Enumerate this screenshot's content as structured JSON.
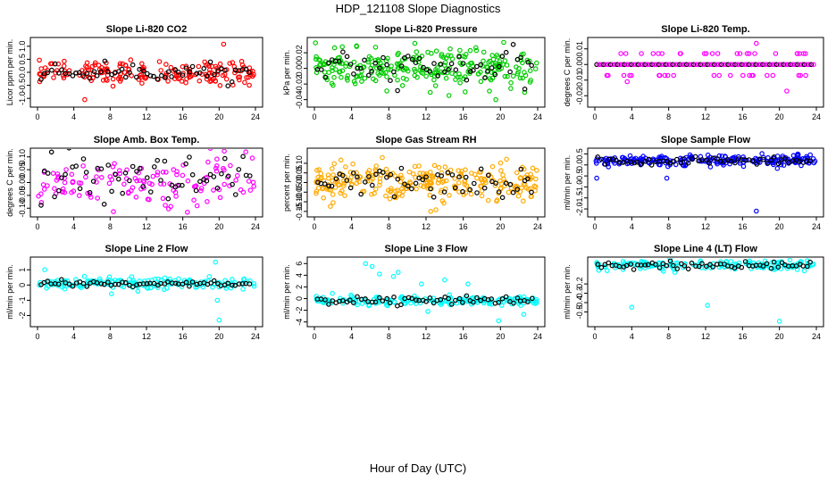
{
  "figure": {
    "title": "HDP_121108  Slope Diagnostics",
    "xlabel": "Hour of Day (UTC)"
  },
  "chart_data": [
    {
      "type": "scatter",
      "title": "Slope Li-820 CO2",
      "ylabel": "Licor ppm per min.",
      "color": "#ff0000",
      "xlim": [
        0,
        24
      ],
      "xticks": [
        0,
        4,
        8,
        12,
        16,
        20,
        24
      ],
      "ylim": [
        -1.2,
        1.2
      ],
      "yticks": [
        -1.0,
        -0.5,
        0.0,
        0.5,
        1.0
      ],
      "ytick_labels": [
        "-1.0",
        "-0.5",
        "0.0",
        "0.5",
        "1.0"
      ],
      "center": 0.0,
      "spread": 0.22,
      "density": 180,
      "black_spread": 0.15,
      "outliers": [
        [
          20.5,
          1.08
        ],
        [
          5.2,
          -1.05
        ]
      ]
    },
    {
      "type": "scatter",
      "title": "Slope Li-820 Pressure",
      "ylabel": "kPa per min.",
      "color": "#00cc00",
      "xlim": [
        0,
        24
      ],
      "xticks": [
        0,
        4,
        8,
        12,
        16,
        20,
        24
      ],
      "ylim": [
        -0.045,
        0.035
      ],
      "yticks": [
        -0.04,
        -0.02,
        0.0,
        0.02
      ],
      "ytick_labels": [
        "-0.04",
        "-0.02",
        "0.00",
        "0.02"
      ],
      "center": 0.0,
      "spread": 0.012,
      "density": 260,
      "black_spread": 0.01,
      "outliers": [
        [
          10.8,
          0.032
        ],
        [
          16.2,
          -0.03
        ],
        [
          19.5,
          -0.04
        ]
      ]
    },
    {
      "type": "scatter",
      "title": "Slope Li-820 Temp.",
      "ylabel": "degrees C per min.",
      "color": "#ff00ff",
      "xlim": [
        0,
        24
      ],
      "xticks": [
        0,
        4,
        8,
        12,
        16,
        20,
        24
      ],
      "ylim": [
        -0.025,
        0.015
      ],
      "yticks": [
        -0.02,
        -0.01,
        0.0,
        0.01
      ],
      "ytick_labels": [
        "-0.02",
        "-0.01",
        "0.00",
        "0.01"
      ],
      "center": 0.0,
      "spread": 0.0,
      "density": 0,
      "black_spread": 0.0,
      "level_rows": [
        0.0,
        0.007,
        -0.007
      ],
      "outliers": [
        [
          17.5,
          0.0135
        ],
        [
          20.8,
          -0.017
        ],
        [
          3.5,
          -0.011
        ],
        [
          16.5,
          0.007
        ]
      ]
    },
    {
      "type": "scatter",
      "title": "Slope Amb. Box Temp.",
      "ylabel": "degrees C per min.",
      "color": "#ff00ff",
      "xlim": [
        0,
        24
      ],
      "xticks": [
        0,
        4,
        8,
        12,
        16,
        20,
        24
      ],
      "ylim": [
        -0.12,
        0.12
      ],
      "yticks": [
        -0.1,
        -0.05,
        0.0,
        0.05,
        0.1
      ],
      "ytick_labels": [
        "-0.10",
        "-0.05",
        "0.00",
        "0.05",
        "0.10"
      ],
      "center": 0.0,
      "spread": 0.05,
      "density": 130,
      "black_spread": 0.05,
      "outliers": []
    },
    {
      "type": "scatter",
      "title": "Slope Gas Stream RH",
      "ylabel": "percent per min.",
      "color": "#ffaa00",
      "xlim": [
        0,
        24
      ],
      "xticks": [
        0,
        4,
        8,
        12,
        16,
        20,
        24
      ],
      "ylim": [
        -0.16,
        0.16
      ],
      "yticks": [
        -0.15,
        -0.1,
        -0.05,
        0.0,
        0.05,
        0.1
      ],
      "ytick_labels": [
        "-0.15",
        "-0.10",
        "-0.05",
        "0.00",
        "0.05",
        "0.10"
      ],
      "center": 0.0,
      "spread": 0.05,
      "density": 260,
      "black_spread": 0.04,
      "outliers": [
        [
          12.5,
          -0.15
        ],
        [
          7.3,
          0.13
        ]
      ]
    },
    {
      "type": "scatter",
      "title": "Slope Sample Flow",
      "ylabel": "ml/min per min.",
      "color": "#0000ff",
      "xlim": [
        0,
        24
      ],
      "xticks": [
        0,
        4,
        8,
        12,
        16,
        20,
        24
      ],
      "ylim": [
        -2.2,
        0.6
      ],
      "yticks": [
        -2.0,
        -1.5,
        -1.0,
        -0.5,
        0.0,
        0.5
      ],
      "ytick_labels": [
        "-2.0",
        "-1.5",
        "-1.0",
        "-0.5",
        "0.0",
        "0.5"
      ],
      "center": 0.2,
      "spread": 0.12,
      "density": 230,
      "black_spread": 0.1,
      "outliers": [
        [
          0.2,
          -0.6
        ],
        [
          7.8,
          -0.6
        ],
        [
          17.5,
          -2.1
        ]
      ]
    },
    {
      "type": "scatter",
      "title": "Slope Line 2 Flow",
      "ylabel": "ml/min per min.",
      "color": "#00ffff",
      "xlim": [
        0,
        24
      ],
      "xticks": [
        0,
        4,
        8,
        12,
        16,
        20,
        24
      ],
      "ylim": [
        -2.5,
        1.6
      ],
      "yticks": [
        -2,
        -1,
        0,
        1
      ],
      "ytick_labels": [
        "-2",
        "-1",
        "0",
        "1"
      ],
      "center": 0.1,
      "spread": 0.18,
      "density": 170,
      "black_spread": 0.08,
      "outliers": [
        [
          19.6,
          1.5
        ],
        [
          20.0,
          -2.3
        ],
        [
          19.8,
          -1.0
        ],
        [
          0.8,
          1.0
        ]
      ]
    },
    {
      "type": "scatter",
      "title": "Slope Line 3 Flow",
      "ylabel": "ml/min per min.",
      "color": "#00ffff",
      "xlim": [
        0,
        24
      ],
      "xticks": [
        0,
        4,
        8,
        12,
        16,
        20,
        24
      ],
      "ylim": [
        -4.2,
        6.5
      ],
      "yticks": [
        -4,
        -2,
        0,
        2,
        4,
        6
      ],
      "ytick_labels": [
        "-4",
        "-2",
        "0",
        "2",
        "4",
        "6"
      ],
      "center": -0.3,
      "spread": 0.35,
      "density": 200,
      "black_spread": 0.3,
      "outliers": [
        [
          5.5,
          6.0
        ],
        [
          6.2,
          5.5
        ],
        [
          7.0,
          4.2
        ],
        [
          8.5,
          3.8
        ],
        [
          9.0,
          4.5
        ],
        [
          11.5,
          2.5
        ],
        [
          14.0,
          3.2
        ],
        [
          16.5,
          2.5
        ],
        [
          19.8,
          -3.8
        ],
        [
          12.2,
          -2.2
        ],
        [
          22.5,
          -2.7
        ]
      ]
    },
    {
      "type": "scatter",
      "title": "Slope Line 4 (LT) Flow",
      "ylabel": "ml/min per min.",
      "color": "#00ffff",
      "xlim": [
        0,
        24
      ],
      "xticks": [
        0,
        4,
        8,
        12,
        16,
        20,
        24
      ],
      "ylim": [
        -0.62,
        0.05
      ],
      "yticks": [
        -0.5,
        -0.4,
        -0.3,
        -0.2
      ],
      "ytick_labels": [
        "-0.5",
        "-0.4",
        "-0.3",
        "-0.2"
      ],
      "center": 0.0,
      "spread": 0.025,
      "density": 170,
      "black_spread": 0.02,
      "outliers": [
        [
          4.0,
          -0.45
        ],
        [
          12.2,
          -0.43
        ],
        [
          20.0,
          -0.6
        ]
      ]
    }
  ]
}
